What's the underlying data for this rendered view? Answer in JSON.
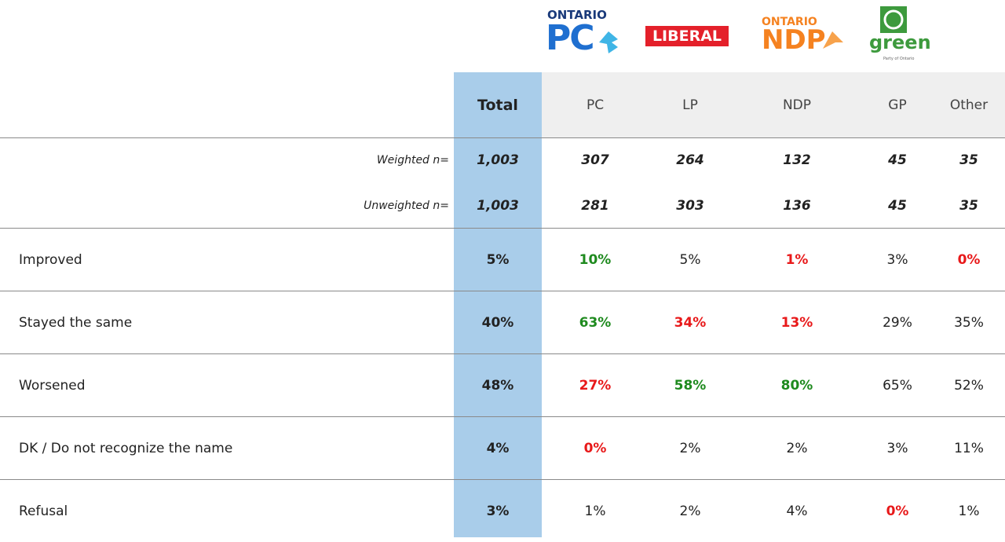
{
  "logos": {
    "pc": {
      "top": "ONTARIO",
      "main": "PC"
    },
    "liberal": {
      "main": "LIBERAL"
    },
    "ndp": {
      "top": "ONTARIO",
      "main": "NDP"
    },
    "green": {
      "main": "green",
      "sub": "Party of Ontario"
    }
  },
  "table": {
    "columns": [
      "Total",
      "PC",
      "LP",
      "NDP",
      "GP",
      "Other"
    ],
    "sample_rows": [
      {
        "label": "Weighted n=",
        "cells": [
          "1,003",
          "307",
          "264",
          "132",
          "45",
          "35"
        ]
      },
      {
        "label": "Unweighted n=",
        "cells": [
          "1,003",
          "281",
          "303",
          "136",
          "45",
          "35"
        ]
      }
    ],
    "rows": [
      {
        "label": "Improved",
        "cells": [
          "5%",
          {
            "text": "10%",
            "color": "#1e8a1e"
          },
          "5%",
          {
            "text": "1%",
            "color": "#e8191a"
          },
          "3%",
          {
            "text": "0%",
            "color": "#e8191a"
          }
        ]
      },
      {
        "label": "Stayed the same",
        "cells": [
          "40%",
          {
            "text": "63%",
            "color": "#1e8a1e"
          },
          {
            "text": "34%",
            "color": "#e8191a"
          },
          {
            "text": "13%",
            "color": "#e8191a"
          },
          "29%",
          "35%"
        ]
      },
      {
        "label": "Worsened",
        "cells": [
          "48%",
          {
            "text": "27%",
            "color": "#e8191a"
          },
          {
            "text": "58%",
            "color": "#1e8a1e"
          },
          {
            "text": "80%",
            "color": "#1e8a1e"
          },
          "65%",
          "52%"
        ]
      },
      {
        "label": "DK / Do not recognize the name",
        "cells": [
          "4%",
          {
            "text": "0%",
            "color": "#e8191a"
          },
          "2%",
          "2%",
          "3%",
          "11%"
        ]
      },
      {
        "label": "Refusal",
        "cells": [
          "3%",
          "1%",
          "2%",
          "4%",
          {
            "text": "0%",
            "color": "#e8191a"
          },
          "1%"
        ]
      }
    ]
  }
}
